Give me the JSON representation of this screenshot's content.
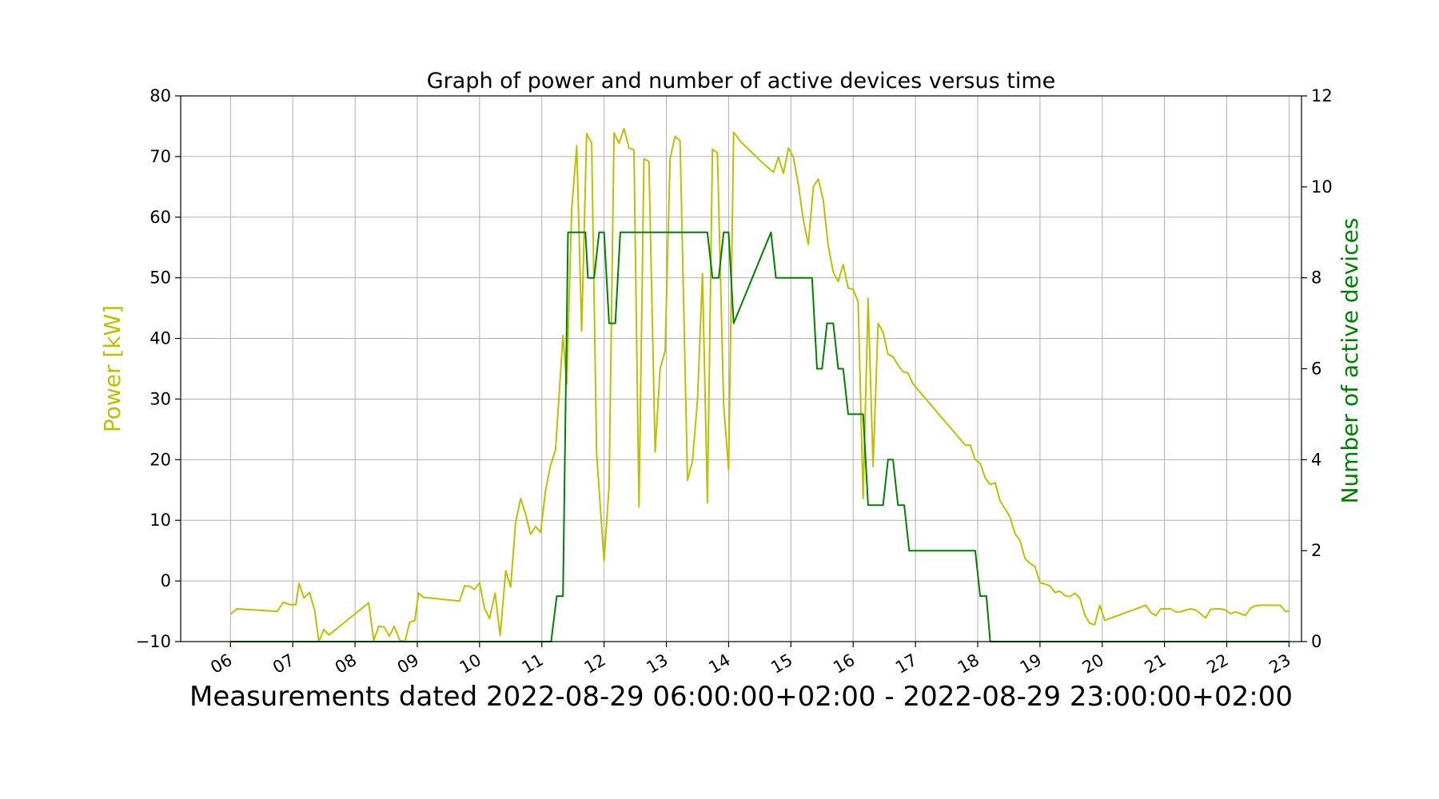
{
  "chart_data": {
    "type": "line",
    "title": "Graph of power and number of active devices versus time",
    "xlabel": "Measurements dated 2022-08-29 06:00:00+02:00 - 2022-08-29 23:00:00+02:00",
    "x_tick_labels": [
      "06",
      "07",
      "08",
      "09",
      "10",
      "11",
      "12",
      "13",
      "14",
      "15",
      "16",
      "17",
      "18",
      "19",
      "20",
      "21",
      "22",
      "23"
    ],
    "x_range_hours": [
      5.2,
      23.2
    ],
    "grid": true,
    "y_left": {
      "label": "Power [kW]",
      "ylim": [
        -10,
        80
      ],
      "ticks": [
        -10,
        0,
        10,
        20,
        30,
        40,
        50,
        60,
        70,
        80
      ],
      "color": "#bfbf00"
    },
    "y_right": {
      "label": "Number of active devices",
      "ylim": [
        0,
        12
      ],
      "ticks": [
        0,
        2,
        4,
        6,
        8,
        10,
        12
      ],
      "color": "#008000"
    },
    "series": [
      {
        "axis": "left",
        "color": "#bfbf00",
        "points": [
          [
            6.0,
            -5.5
          ],
          [
            6.1,
            -4.6
          ],
          [
            6.75,
            -5.0
          ],
          [
            6.85,
            -3.5
          ],
          [
            6.95,
            -3.9
          ],
          [
            7.05,
            -3.9
          ],
          [
            7.1,
            -0.4
          ],
          [
            7.18,
            -2.8
          ],
          [
            7.27,
            -1.9
          ],
          [
            7.35,
            -4.8
          ],
          [
            7.42,
            -10.5
          ],
          [
            7.5,
            -8.0
          ],
          [
            7.58,
            -8.9
          ],
          [
            8.22,
            -3.6
          ],
          [
            8.3,
            -9.8
          ],
          [
            8.38,
            -7.5
          ],
          [
            8.47,
            -7.6
          ],
          [
            8.55,
            -9.1
          ],
          [
            8.63,
            -7.5
          ],
          [
            8.72,
            -9.8
          ],
          [
            8.8,
            -10.5
          ],
          [
            8.88,
            -6.8
          ],
          [
            8.96,
            -6.5
          ],
          [
            9.02,
            -2.0
          ],
          [
            9.1,
            -2.7
          ],
          [
            9.68,
            -3.3
          ],
          [
            9.76,
            -0.8
          ],
          [
            9.84,
            -0.9
          ],
          [
            9.92,
            -1.4
          ],
          [
            10.0,
            -0.3
          ],
          [
            10.08,
            -4.5
          ],
          [
            10.16,
            -6.2
          ],
          [
            10.25,
            -2.0
          ],
          [
            10.33,
            -9.0
          ],
          [
            10.42,
            1.7
          ],
          [
            10.5,
            -1.0
          ],
          [
            10.58,
            9.7
          ],
          [
            10.66,
            13.6
          ],
          [
            10.74,
            11.0
          ],
          [
            10.82,
            7.7
          ],
          [
            10.9,
            9.0
          ],
          [
            10.98,
            8.0
          ],
          [
            11.06,
            14.9
          ],
          [
            11.14,
            19.1
          ],
          [
            11.22,
            21.6
          ],
          [
            11.34,
            40.5
          ],
          [
            11.4,
            32.5
          ],
          [
            11.48,
            61.2
          ],
          [
            11.56,
            71.8
          ],
          [
            11.64,
            41.2
          ],
          [
            11.72,
            73.8
          ],
          [
            11.8,
            72.2
          ],
          [
            11.88,
            21.0
          ],
          [
            12.0,
            3.3
          ],
          [
            12.08,
            15.7
          ],
          [
            12.16,
            73.9
          ],
          [
            12.24,
            72.2
          ],
          [
            12.32,
            74.6
          ],
          [
            12.4,
            71.4
          ],
          [
            12.48,
            71.1
          ],
          [
            12.56,
            12.2
          ],
          [
            12.64,
            69.6
          ],
          [
            12.72,
            69.2
          ],
          [
            12.82,
            21.3
          ],
          [
            12.9,
            35.0
          ],
          [
            12.98,
            37.9
          ],
          [
            13.06,
            69.7
          ],
          [
            13.14,
            73.3
          ],
          [
            13.22,
            72.6
          ],
          [
            13.34,
            16.6
          ],
          [
            13.42,
            19.8
          ],
          [
            13.5,
            29.9
          ],
          [
            13.58,
            50.7
          ],
          [
            13.66,
            12.9
          ],
          [
            13.74,
            71.2
          ],
          [
            13.82,
            70.6
          ],
          [
            13.92,
            29.1
          ],
          [
            14.0,
            18.3
          ],
          [
            14.08,
            74.0
          ],
          [
            14.2,
            72.4
          ],
          [
            14.35,
            70.9
          ],
          [
            14.55,
            68.9
          ],
          [
            14.72,
            67.4
          ],
          [
            14.8,
            69.9
          ],
          [
            14.88,
            67.2
          ],
          [
            14.96,
            71.4
          ],
          [
            15.04,
            69.9
          ],
          [
            15.12,
            65.3
          ],
          [
            15.2,
            59.5
          ],
          [
            15.28,
            55.5
          ],
          [
            15.36,
            65.0
          ],
          [
            15.44,
            66.3
          ],
          [
            15.52,
            62.8
          ],
          [
            15.6,
            55.3
          ],
          [
            15.68,
            50.9
          ],
          [
            15.76,
            49.4
          ],
          [
            15.84,
            52.2
          ],
          [
            15.92,
            48.3
          ],
          [
            16.0,
            48.1
          ],
          [
            16.08,
            46.0
          ],
          [
            16.16,
            13.6
          ],
          [
            16.24,
            46.6
          ],
          [
            16.32,
            18.9
          ],
          [
            16.4,
            42.5
          ],
          [
            16.48,
            41.0
          ],
          [
            16.56,
            37.4
          ],
          [
            16.64,
            37.0
          ],
          [
            16.72,
            35.6
          ],
          [
            16.8,
            34.5
          ],
          [
            16.88,
            34.3
          ],
          [
            16.96,
            32.5
          ],
          [
            17.8,
            22.4
          ],
          [
            17.88,
            22.4
          ],
          [
            17.96,
            20.0
          ],
          [
            18.04,
            19.4
          ],
          [
            18.12,
            17.0
          ],
          [
            18.2,
            15.9
          ],
          [
            18.28,
            16.2
          ],
          [
            18.36,
            13.2
          ],
          [
            18.44,
            11.9
          ],
          [
            18.52,
            10.5
          ],
          [
            18.6,
            7.8
          ],
          [
            18.68,
            6.7
          ],
          [
            18.76,
            3.7
          ],
          [
            18.84,
            2.9
          ],
          [
            18.92,
            2.4
          ],
          [
            19.0,
            -0.3
          ],
          [
            19.08,
            -0.5
          ],
          [
            19.16,
            -0.8
          ],
          [
            19.24,
            -1.9
          ],
          [
            19.32,
            -1.7
          ],
          [
            19.4,
            -2.4
          ],
          [
            19.48,
            -2.6
          ],
          [
            19.56,
            -2.0
          ],
          [
            19.64,
            -2.8
          ],
          [
            19.72,
            -5.6
          ],
          [
            19.8,
            -7.0
          ],
          [
            19.88,
            -7.2
          ],
          [
            19.96,
            -4.0
          ],
          [
            20.04,
            -6.5
          ],
          [
            20.7,
            -4.0
          ],
          [
            20.78,
            -5.2
          ],
          [
            20.86,
            -5.7
          ],
          [
            20.94,
            -4.6
          ],
          [
            21.02,
            -4.6
          ],
          [
            21.1,
            -4.6
          ],
          [
            21.18,
            -5.1
          ],
          [
            21.26,
            -5.1
          ],
          [
            21.34,
            -4.8
          ],
          [
            21.42,
            -4.6
          ],
          [
            21.5,
            -4.8
          ],
          [
            21.58,
            -5.4
          ],
          [
            21.66,
            -6.1
          ],
          [
            21.74,
            -4.7
          ],
          [
            21.82,
            -4.6
          ],
          [
            21.9,
            -4.6
          ],
          [
            21.98,
            -4.8
          ],
          [
            22.06,
            -5.4
          ],
          [
            22.14,
            -5.1
          ],
          [
            22.22,
            -5.4
          ],
          [
            22.3,
            -5.7
          ],
          [
            22.38,
            -4.5
          ],
          [
            22.46,
            -4.1
          ],
          [
            22.54,
            -4.0
          ],
          [
            22.62,
            -4.0
          ],
          [
            22.7,
            -4.0
          ],
          [
            22.78,
            -4.0
          ],
          [
            22.86,
            -4.0
          ],
          [
            22.94,
            -5.0
          ],
          [
            23.0,
            -5.0
          ]
        ]
      },
      {
        "axis": "right",
        "color": "#008000",
        "points": [
          [
            6.0,
            0
          ],
          [
            11.15,
            0
          ],
          [
            11.24,
            1
          ],
          [
            11.34,
            1
          ],
          [
            11.42,
            9
          ],
          [
            11.7,
            9
          ],
          [
            11.74,
            8
          ],
          [
            11.84,
            8
          ],
          [
            11.92,
            9
          ],
          [
            12.0,
            9
          ],
          [
            12.08,
            7
          ],
          [
            12.18,
            7
          ],
          [
            12.26,
            9
          ],
          [
            13.66,
            9
          ],
          [
            13.74,
            8
          ],
          [
            13.84,
            8
          ],
          [
            13.92,
            9
          ],
          [
            14.0,
            9
          ],
          [
            14.08,
            7
          ],
          [
            14.68,
            9
          ],
          [
            14.76,
            8
          ],
          [
            15.34,
            8
          ],
          [
            15.42,
            6
          ],
          [
            15.5,
            6
          ],
          [
            15.58,
            7
          ],
          [
            15.68,
            7
          ],
          [
            15.76,
            6
          ],
          [
            15.84,
            6
          ],
          [
            15.92,
            5
          ],
          [
            16.16,
            5
          ],
          [
            16.24,
            3
          ],
          [
            16.48,
            3
          ],
          [
            16.56,
            4
          ],
          [
            16.64,
            4
          ],
          [
            16.72,
            3
          ],
          [
            16.82,
            3
          ],
          [
            16.9,
            2
          ],
          [
            17.96,
            2
          ],
          [
            18.04,
            1
          ],
          [
            18.14,
            1
          ],
          [
            18.2,
            0
          ],
          [
            23.0,
            0
          ]
        ]
      }
    ]
  }
}
